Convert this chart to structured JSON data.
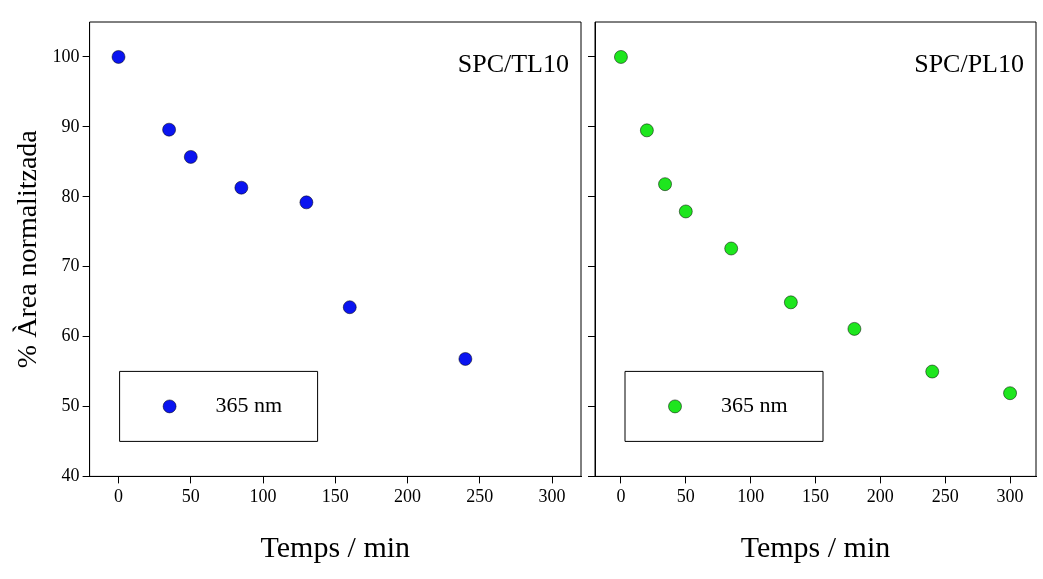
{
  "chart_data": [
    {
      "type": "scatter",
      "x": [
        0,
        35,
        50,
        85,
        130,
        160,
        240
      ],
      "xlim": [
        -20,
        320
      ],
      "xticks": [
        0,
        50,
        100,
        150,
        200,
        250,
        300
      ],
      "ylim": [
        40,
        105
      ],
      "yticks": [
        40,
        50,
        60,
        70,
        80,
        90,
        100
      ],
      "xlabel": "Temps / min",
      "ylabel": "% Àrea normalitzada",
      "annotations": [
        "SPC/TL10"
      ],
      "legend": "bottom left",
      "grid": false,
      "marker": "circle",
      "series": [
        {
          "name": "365 nm",
          "color": "#0a14f0",
          "values": [
            100,
            89.6,
            85.7,
            81.3,
            79.2,
            64.2,
            56.8
          ]
        }
      ]
    },
    {
      "type": "scatter",
      "x": [
        0,
        20,
        34,
        50,
        85,
        131,
        180,
        240,
        300
      ],
      "xlim": [
        -20,
        320
      ],
      "xticks": [
        0,
        50,
        100,
        150,
        200,
        250,
        300
      ],
      "ylim": [
        40,
        105
      ],
      "yticks": [
        40,
        50,
        60,
        70,
        80,
        90,
        100
      ],
      "xlabel": "Temps / min",
      "annotations": [
        "SPC/PL10"
      ],
      "legend": "bottom left",
      "grid": false,
      "marker": "circle",
      "tick_labels": "x",
      "series": [
        {
          "name": "365 nm",
          "color": "#1ee61e",
          "values": [
            100,
            89.5,
            81.8,
            77.9,
            72.6,
            64.9,
            61.1,
            55.0,
            51.9
          ]
        }
      ]
    }
  ]
}
